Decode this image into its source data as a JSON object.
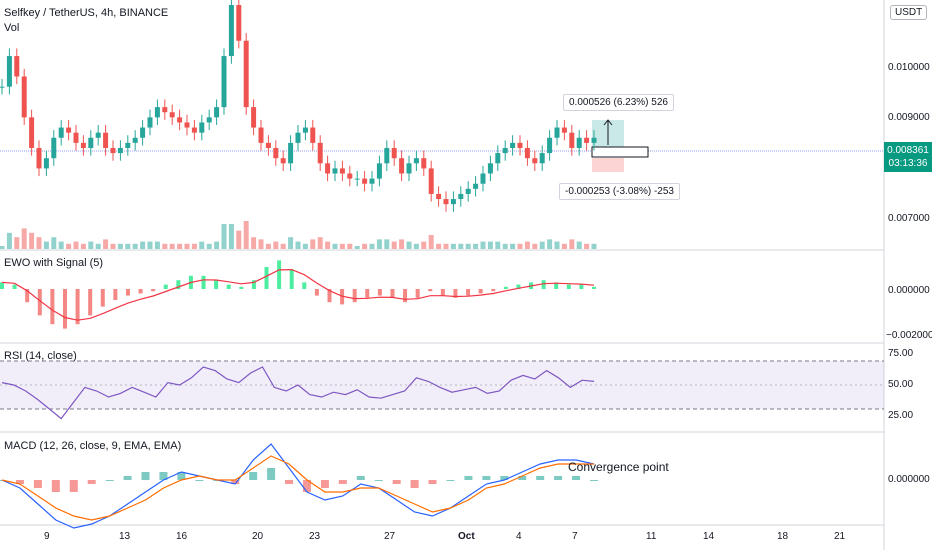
{
  "header": {
    "title": "Selfkey / TetherUS, 4h, BINANCE",
    "volume_label": "Vol",
    "currency_button": "USDT"
  },
  "price_panel": {
    "current_price": "0.008361",
    "countdown": "03:13:36",
    "y_ticks": [
      "0.010000",
      "0.009000",
      "0.007000"
    ],
    "long_measure": "0.000526 (6.23%) 526",
    "short_measure": "-0.000253 (-3.08%) -253"
  },
  "ewo_panel": {
    "title": "EWO with Signal (5)",
    "y_ticks": [
      "0.000000",
      "−0.002000"
    ]
  },
  "rsi_panel": {
    "title": "RSI (14, close)",
    "y_ticks": [
      "75.00",
      "50.00",
      "25.00"
    ]
  },
  "macd_panel": {
    "title": "MACD (12, 26, close, 9, EMA, EMA)",
    "y_ticks": [
      "0.000000"
    ],
    "annotation": "Convergence point"
  },
  "x_axis": {
    "ticks": [
      "9",
      "13",
      "16",
      "20",
      "23",
      "27",
      "Oct",
      "4",
      "7",
      "11",
      "14",
      "18",
      "21"
    ]
  },
  "colors": {
    "up": "#26a69a",
    "down": "#ef5350",
    "rsi_line": "#7e57c2",
    "macd_line": "#2962ff",
    "signal_line": "#ff6d00",
    "ewo_signal": "#f23645",
    "price_line": "#9598f0"
  },
  "chart_data": [
    {
      "type": "candlestick",
      "title": "Selfkey / TetherUS, 4h, BINANCE",
      "price_series": [
        0.0094,
        0.01,
        0.0096,
        0.0088,
        0.0082,
        0.0078,
        0.008,
        0.0084,
        0.0086,
        0.0085,
        0.0083,
        0.0082,
        0.0084,
        0.0085,
        0.0082,
        0.0081,
        0.0082,
        0.0083,
        0.0084,
        0.0086,
        0.0088,
        0.009,
        0.0089,
        0.0088,
        0.0087,
        0.0086,
        0.0085,
        0.0087,
        0.0088,
        0.009,
        0.01,
        0.011,
        0.0103,
        0.009,
        0.0086,
        0.0083,
        0.0082,
        0.008,
        0.0079,
        0.0083,
        0.0085,
        0.0086,
        0.0083,
        0.0079,
        0.0077,
        0.0078,
        0.0077,
        0.0076,
        0.0076,
        0.0075,
        0.0076,
        0.0079,
        0.0082,
        0.008,
        0.0077,
        0.0079,
        0.008,
        0.0078,
        0.0073,
        0.0072,
        0.0071,
        0.0072,
        0.0073,
        0.0074,
        0.0075,
        0.0077,
        0.0079,
        0.0081,
        0.0082,
        0.0083,
        0.0082,
        0.008,
        0.0079,
        0.0081,
        0.0084,
        0.0086,
        0.0085,
        0.0082,
        0.0084,
        0.0083,
        0.0084
      ],
      "y_range": [
        0.0063,
        0.011
      ],
      "current_price": 0.008361
    },
    {
      "type": "bar",
      "title": "EWO with Signal (5)",
      "values": [
        0.0003,
        0.0002,
        -0.0006,
        -0.0012,
        -0.0016,
        -0.0018,
        -0.0016,
        -0.0012,
        -0.0008,
        -0.0005,
        -0.0003,
        -0.0002,
        -0.0001,
        0.0002,
        0.0004,
        0.0006,
        0.0006,
        0.0004,
        0.0002,
        0.0001,
        0.0004,
        0.001,
        0.0013,
        0.0009,
        0.0003,
        -0.0003,
        -0.0006,
        -0.0007,
        -0.0006,
        -0.0004,
        -0.0003,
        -0.0004,
        -0.0006,
        -0.0004,
        -0.0001,
        -0.0003,
        -0.0004,
        -0.0003,
        -0.0002,
        -0.0001,
        0.0001,
        0.0002,
        0.0003,
        0.0004,
        0.0003,
        0.0002,
        0.0002,
        0.0001
      ],
      "y_ticks": [
        0.0,
        -0.002
      ]
    },
    {
      "type": "line",
      "title": "RSI (14, close)",
      "values": [
        52,
        50,
        45,
        38,
        30,
        22,
        35,
        48,
        45,
        40,
        43,
        48,
        44,
        40,
        52,
        50,
        56,
        65,
        62,
        55,
        52,
        60,
        65,
        48,
        45,
        50,
        42,
        40,
        44,
        42,
        46,
        40,
        39,
        42,
        45,
        56,
        53,
        48,
        44,
        46,
        48,
        43,
        45,
        54,
        58,
        55,
        62,
        56,
        48,
        54,
        53
      ],
      "reference_levels": [
        70,
        50,
        30
      ],
      "y_ticks": [
        75,
        50,
        25
      ]
    },
    {
      "type": "line",
      "title": "MACD (12, 26, close, 9, EMA, EMA)",
      "series": [
        {
          "values": [
            0.0,
            -0.0002,
            -0.0006,
            -0.001,
            -0.0012,
            -0.0011,
            -0.0009,
            -0.0006,
            -0.0003,
            0.0,
            0.0002,
            0.0001,
            0.0,
            -0.0001,
            0.0005,
            0.0009,
            0.0003,
            -0.0003,
            -0.0005,
            -0.0004,
            -0.0001,
            -0.0002,
            -0.0005,
            -0.0008,
            -0.0009,
            -0.0007,
            -0.0004,
            -0.0001,
            0.0,
            0.0002,
            0.0004,
            0.0005,
            0.0005,
            0.0004
          ]
        },
        {
          "values": [
            0.0,
            -0.0001,
            -0.0004,
            -0.0007,
            -0.0009,
            -0.001,
            -0.0009,
            -0.0007,
            -0.0005,
            -0.0002,
            0.0,
            0.0001,
            0.0,
            0.0,
            0.0003,
            0.0006,
            0.0004,
            0.0,
            -0.0003,
            -0.0003,
            -0.0002,
            -0.0002,
            -0.0004,
            -0.0006,
            -0.0008,
            -0.0007,
            -0.0005,
            -0.0002,
            -0.0001,
            0.0001,
            0.0003,
            0.0004,
            0.0004,
            0.0004
          ]
        }
      ],
      "annotation": "Convergence point",
      "y_ticks": [
        0.0
      ]
    }
  ]
}
